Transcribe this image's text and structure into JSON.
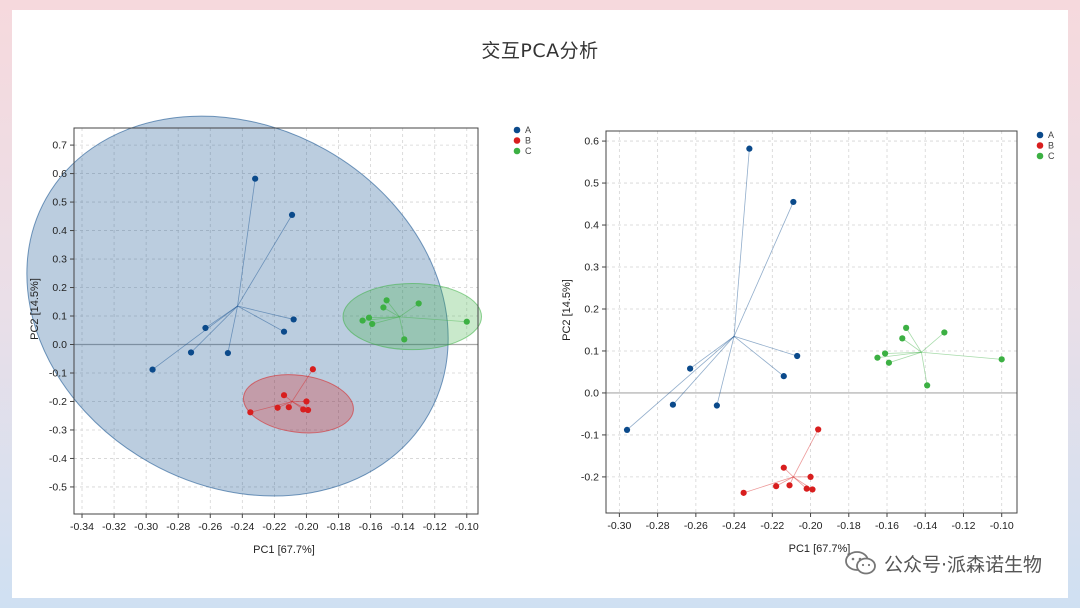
{
  "page": {
    "title": "交互PCA分析"
  },
  "watermark": {
    "text": "公众号·派森诺生物",
    "icon": "wechat-icon"
  },
  "colors": {
    "A": "#0b4a8b",
    "B": "#d81e1e",
    "C": "#3cb043"
  },
  "chart_data": [
    {
      "type": "scatter",
      "xlabel": "PC1 [67.7%]",
      "ylabel": "PC2 [14.5%]",
      "xlim": [
        -0.345,
        -0.093
      ],
      "ylim": [
        -0.595,
        0.76
      ],
      "xticks": [
        "-0.34",
        "-0.32",
        "-0.30",
        "-0.28",
        "-0.26",
        "-0.24",
        "-0.22",
        "-0.20",
        "-0.18",
        "-0.16",
        "-0.14",
        "-0.12",
        "-0.10"
      ],
      "yticks": [
        "0.7",
        "0.6",
        "0.5",
        "0.4",
        "0.3",
        "0.2",
        "0.1",
        "0.0",
        "-0.1",
        "-0.2",
        "-0.3",
        "-0.4",
        "-0.5"
      ],
      "grid": true,
      "legend_position": "top-right",
      "ellipses": true,
      "series": [
        {
          "name": "A",
          "centroid": [
            -0.243,
            0.135
          ],
          "points": [
            [
              -0.296,
              -0.088
            ],
            [
              -0.272,
              -0.028
            ],
            [
              -0.263,
              0.058
            ],
            [
              -0.249,
              -0.03
            ],
            [
              -0.232,
              0.582
            ],
            [
              -0.214,
              0.045
            ],
            [
              -0.209,
              0.455
            ],
            [
              -0.208,
              0.088
            ]
          ],
          "ellipse": {
            "center": [
              -0.243,
              0.135
            ],
            "rx": 0.137,
            "ry": 0.63,
            "angle_deg": 29.4
          }
        },
        {
          "name": "B",
          "centroid": [
            -0.209,
            -0.2
          ],
          "points": [
            [
              -0.235,
              -0.238
            ],
            [
              -0.218,
              -0.222
            ],
            [
              -0.214,
              -0.178
            ],
            [
              -0.211,
              -0.22
            ],
            [
              -0.202,
              -0.228
            ],
            [
              -0.2,
              -0.2
            ],
            [
              -0.199,
              -0.23
            ],
            [
              -0.196,
              -0.087
            ]
          ],
          "ellipse": {
            "center": [
              -0.205,
              -0.208
            ],
            "rx": 0.0345,
            "ry": 0.1,
            "angle_deg": 7.3
          }
        },
        {
          "name": "C",
          "centroid": [
            -0.142,
            0.097
          ],
          "points": [
            [
              -0.165,
              0.084
            ],
            [
              -0.161,
              0.094
            ],
            [
              -0.159,
              0.072
            ],
            [
              -0.152,
              0.13
            ],
            [
              -0.15,
              0.155
            ],
            [
              -0.139,
              0.018
            ],
            [
              -0.13,
              0.144
            ],
            [
              -0.1,
              0.08
            ]
          ],
          "ellipse": {
            "center": [
              -0.134,
              0.098
            ],
            "rx": 0.0432,
            "ry": 0.116,
            "angle_deg": 0
          }
        }
      ]
    },
    {
      "type": "scatter",
      "xlabel": "PC1 [67.7%]",
      "ylabel": "PC2 [14.5%]",
      "xlim": [
        -0.307,
        -0.092
      ],
      "ylim": [
        -0.286,
        0.624
      ],
      "xticks": [
        "-0.30",
        "-0.28",
        "-0.26",
        "-0.24",
        "-0.22",
        "-0.20",
        "-0.18",
        "-0.16",
        "-0.14",
        "-0.12",
        "-0.10"
      ],
      "yticks": [
        "0.6",
        "0.5",
        "0.4",
        "0.3",
        "0.2",
        "0.1",
        "0.0",
        "-0.1",
        "-0.2"
      ],
      "grid": true,
      "legend_position": "top-right",
      "ellipses": false,
      "series": [
        {
          "name": "A",
          "centroid": [
            -0.24,
            0.135
          ],
          "points": [
            [
              -0.296,
              -0.088
            ],
            [
              -0.272,
              -0.028
            ],
            [
              -0.263,
              0.058
            ],
            [
              -0.249,
              -0.03
            ],
            [
              -0.232,
              0.582
            ],
            [
              -0.214,
              0.04
            ],
            [
              -0.209,
              0.455
            ],
            [
              -0.207,
              0.088
            ]
          ]
        },
        {
          "name": "B",
          "centroid": [
            -0.209,
            -0.2
          ],
          "points": [
            [
              -0.235,
              -0.238
            ],
            [
              -0.218,
              -0.222
            ],
            [
              -0.214,
              -0.178
            ],
            [
              -0.211,
              -0.22
            ],
            [
              -0.202,
              -0.228
            ],
            [
              -0.2,
              -0.2
            ],
            [
              -0.199,
              -0.23
            ],
            [
              -0.196,
              -0.087
            ]
          ]
        },
        {
          "name": "C",
          "centroid": [
            -0.142,
            0.097
          ],
          "points": [
            [
              -0.165,
              0.084
            ],
            [
              -0.161,
              0.094
            ],
            [
              -0.159,
              0.072
            ],
            [
              -0.152,
              0.13
            ],
            [
              -0.15,
              0.155
            ],
            [
              -0.139,
              0.018
            ],
            [
              -0.13,
              0.144
            ],
            [
              -0.1,
              0.08
            ]
          ]
        }
      ]
    }
  ]
}
